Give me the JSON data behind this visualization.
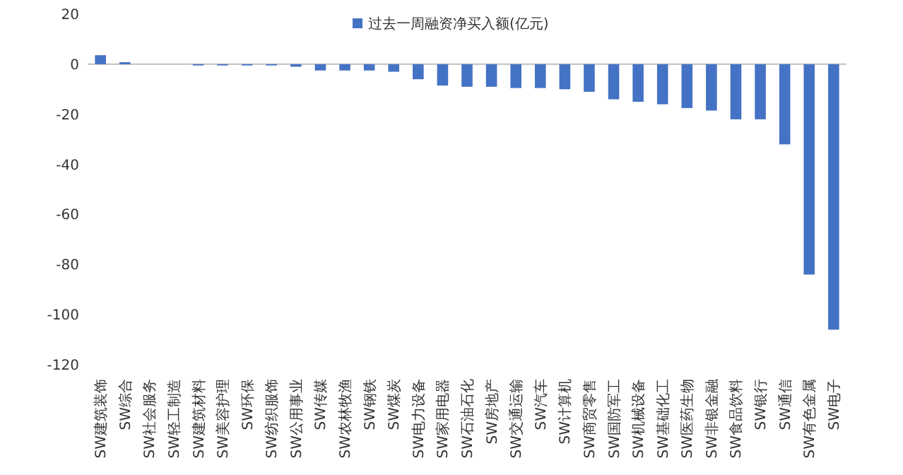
{
  "chart_data": {
    "type": "bar",
    "categories": [
      "SW建筑装饰",
      "SW综合",
      "SW社会服务",
      "SW轻工制造",
      "SW建筑材料",
      "SW美容护理",
      "SW环保",
      "SW纺织服饰",
      "SW公用事业",
      "SW传媒",
      "SW农林牧渔",
      "SW钢铁",
      "SW煤炭",
      "SW电力设备",
      "SW家用电器",
      "SW石油石化",
      "SW房地产",
      "SW交通运输",
      "SW汽车",
      "SW计算机",
      "SW商贸零售",
      "SW国防军工",
      "SW机械设备",
      "SW基础化工",
      "SW医药生物",
      "SW非银金融",
      "SW食品饮料",
      "SW银行",
      "SW通信",
      "SW有色金属",
      "SW电子"
    ],
    "series": [
      {
        "name": "过去一周融资净买入额(亿元)",
        "color": "#4472c4",
        "values": [
          3.6,
          0.8,
          0,
          0,
          -0.5,
          -0.5,
          -0.5,
          -0.5,
          -1,
          -2.5,
          -2.5,
          -2.5,
          -3,
          -6,
          -8.5,
          -9,
          -9,
          -9.5,
          -9.5,
          -10,
          -11,
          -14,
          -15,
          -16,
          -17.5,
          -18.5,
          -22,
          -22,
          -32,
          -84,
          -106
        ]
      }
    ],
    "ylim": [
      -120,
      20
    ],
    "yticks": [
      20,
      0,
      -20,
      -40,
      -60,
      -80,
      -100,
      -120
    ],
    "legend": "top"
  }
}
